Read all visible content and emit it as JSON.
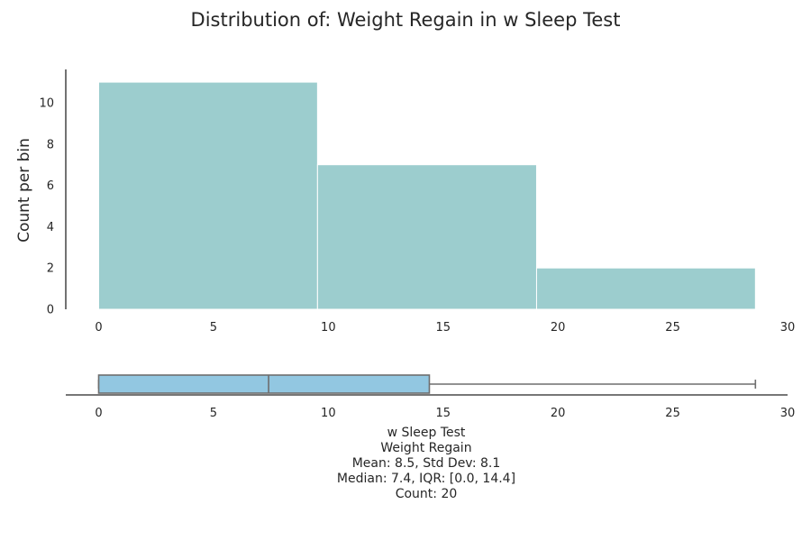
{
  "chart_data": [
    {
      "type": "histogram",
      "title": "Distribution of: Weight Regain in w Sleep Test",
      "ylabel": "Count per bin",
      "xlabel": "",
      "xlim": [
        -1.5,
        30
      ],
      "ylim": [
        0,
        11.5
      ],
      "x_ticks": [
        0,
        5,
        10,
        15,
        20,
        25,
        30
      ],
      "y_ticks": [
        0,
        2,
        4,
        6,
        8,
        10
      ],
      "bar_color": "#9ccdce",
      "bins": [
        {
          "start": 0.0,
          "end": 9.53,
          "count": 11
        },
        {
          "start": 9.53,
          "end": 19.07,
          "count": 7
        },
        {
          "start": 19.07,
          "end": 28.6,
          "count": 2
        }
      ]
    },
    {
      "type": "boxplot",
      "xlim": [
        -1.5,
        30
      ],
      "x_ticks": [
        0,
        5,
        10,
        15,
        20,
        25,
        30
      ],
      "box_color": "#92c7e1",
      "line_color": "#6e6e6e",
      "whisker_low": 0.0,
      "q1": 0.0,
      "median": 7.4,
      "q3": 14.4,
      "whisker_high": 28.6,
      "caption": [
        "w Sleep Test",
        "Weight Regain",
        "Mean: 8.5, Std Dev: 8.1",
        "Median: 7.4, IQR: [0.0, 14.4]",
        "Count: 20"
      ]
    }
  ]
}
